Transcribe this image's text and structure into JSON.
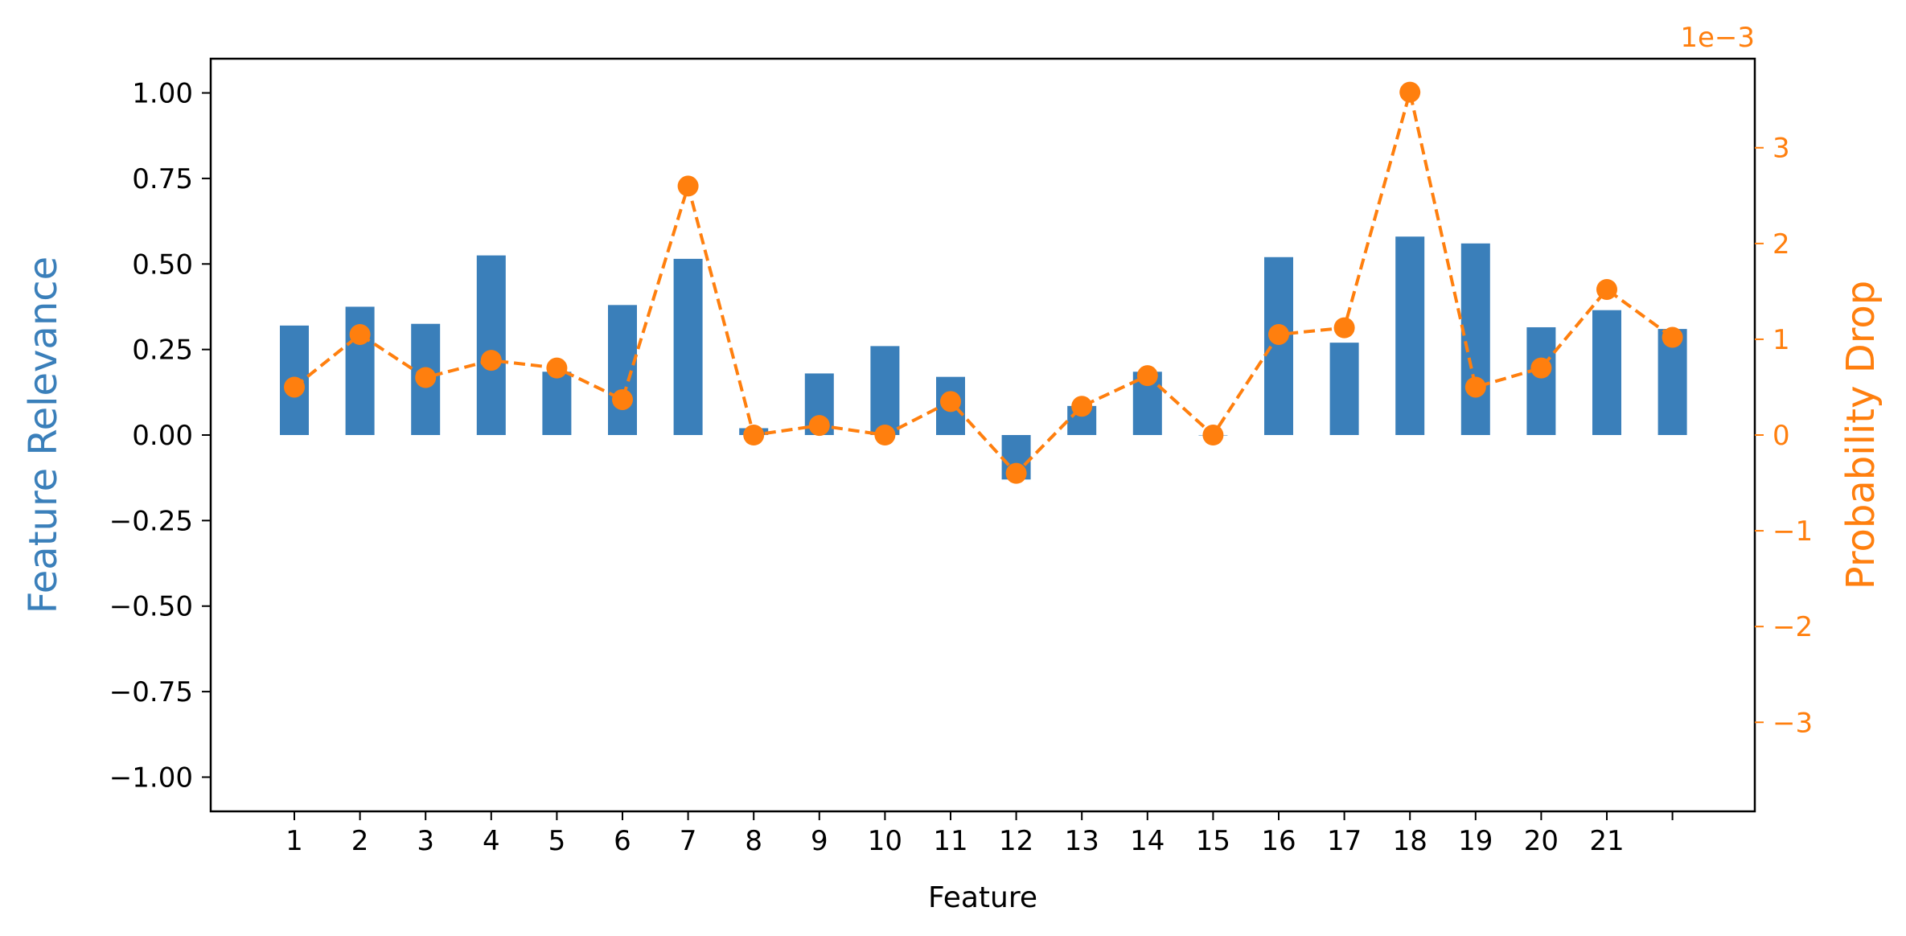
{
  "chart_data": {
    "type": "bar",
    "title": "",
    "xlabel": "Feature",
    "ylabel": "Feature Relevance",
    "y2label": "Probability Drop",
    "y2_multiplier_label": "1e−3",
    "x_tick_labels": [
      "1",
      "2",
      "3",
      "4",
      "5",
      "6",
      "7",
      "8",
      "9",
      "10",
      "11",
      "12",
      "13",
      "14",
      "15",
      "16",
      "17",
      "18",
      "19",
      "20",
      "21",
      ""
    ],
    "ylim": [
      -1.1,
      1.1
    ],
    "y_ticks": [
      1.0,
      0.75,
      0.5,
      0.25,
      0.0,
      -0.25,
      -0.5,
      -0.75,
      -1.0
    ],
    "y_tick_labels": [
      "1.00",
      "0.75",
      "0.50",
      "0.25",
      "0.00",
      "−0.25",
      "−0.50",
      "−0.75",
      "−1.00"
    ],
    "y2lim": [
      -3.93,
      3.93
    ],
    "y2_ticks": [
      3,
      2,
      1,
      0,
      -1,
      -2,
      -3
    ],
    "y2_tick_labels": [
      "3",
      "2",
      "1",
      "0",
      "−1",
      "−2",
      "−3"
    ],
    "grid": false,
    "series": [
      {
        "name": "Feature Relevance",
        "kind": "bar",
        "axis": "left",
        "color": "#3a7fba",
        "values": [
          0.32,
          0.375,
          0.325,
          0.525,
          0.185,
          0.38,
          0.515,
          0.02,
          0.18,
          0.26,
          0.17,
          -0.13,
          0.085,
          0.185,
          0.0,
          0.52,
          0.27,
          0.58,
          0.56,
          0.315,
          0.365,
          0.31
        ]
      },
      {
        "name": "Probability Drop",
        "kind": "line",
        "axis": "right",
        "style": "dashed",
        "marker": "circle",
        "color": "#ff7f0e",
        "values": [
          0.5,
          1.05,
          0.6,
          0.78,
          0.7,
          0.37,
          2.6,
          0.0,
          0.1,
          0.0,
          0.35,
          -0.4,
          0.3,
          0.62,
          0.0,
          1.05,
          1.12,
          3.58,
          0.5,
          0.7,
          1.52,
          1.02
        ]
      }
    ]
  }
}
